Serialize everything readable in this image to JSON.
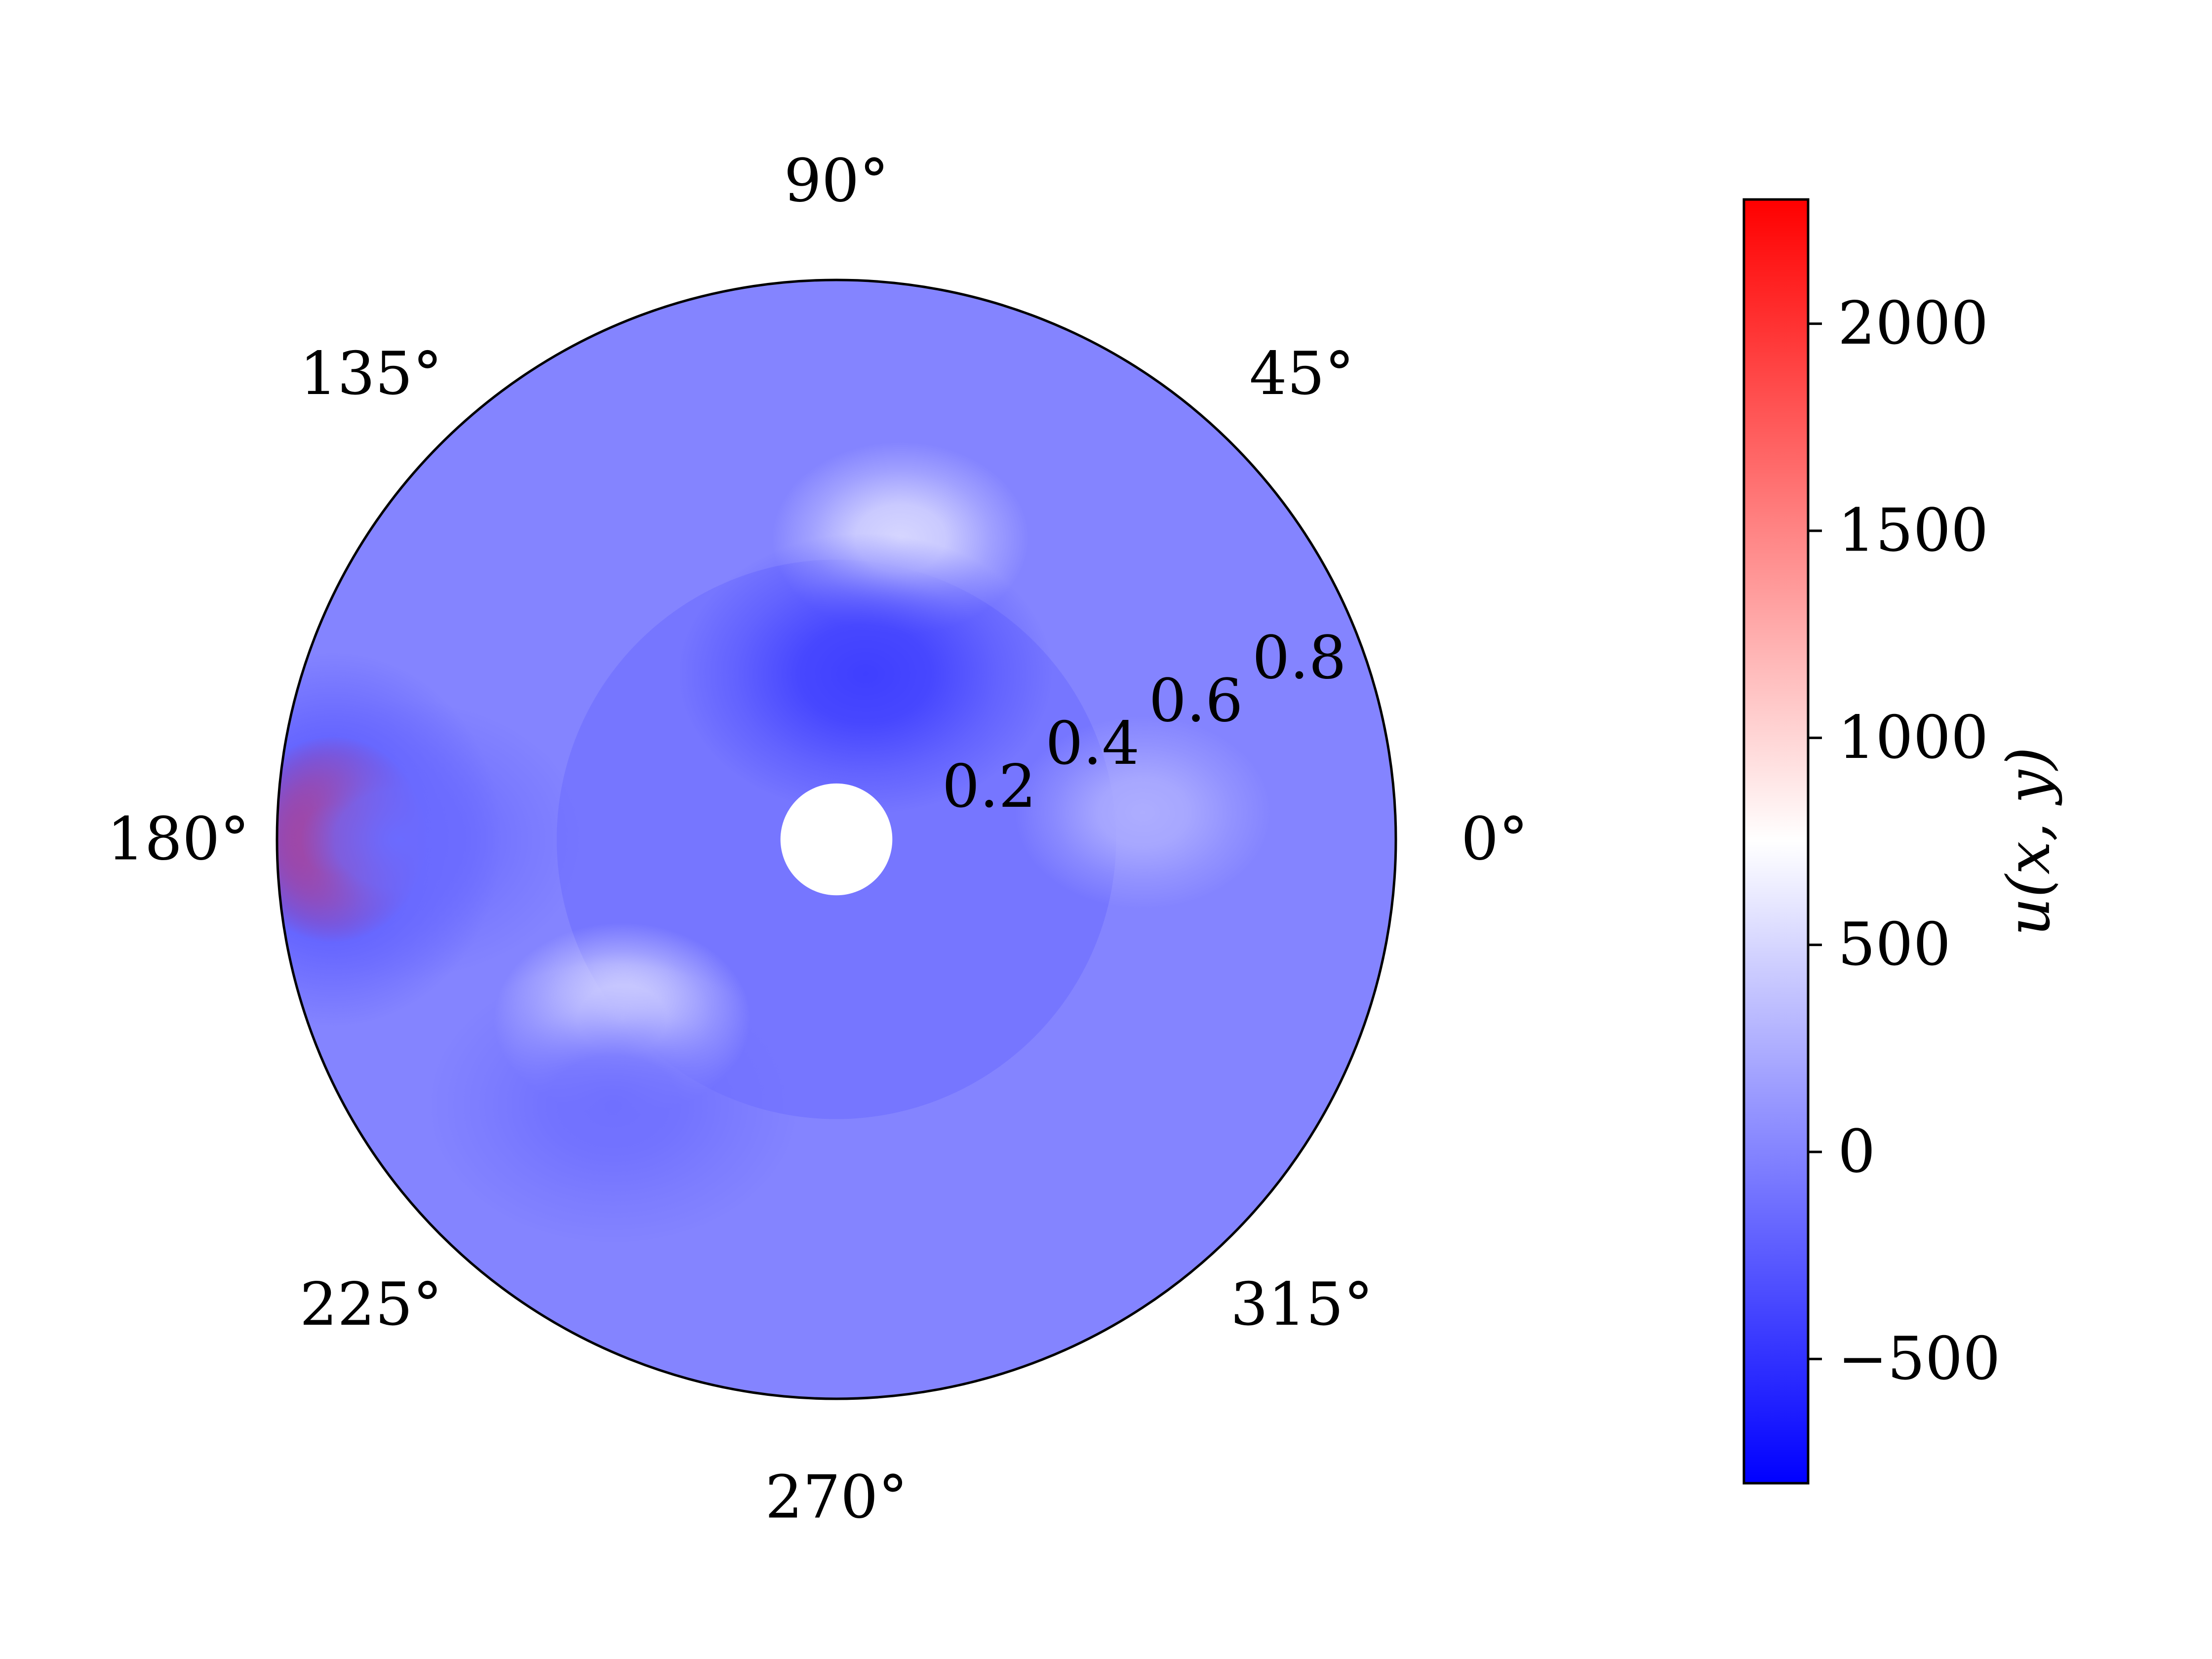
{
  "chart_data": {
    "type": "heatmap",
    "projection": "polar",
    "title": "",
    "angular_ticks": [
      "0°",
      "45°",
      "90°",
      "135°",
      "180°",
      "225°",
      "270°",
      "315°"
    ],
    "angular_tick_degrees": [
      0,
      45,
      90,
      135,
      180,
      225,
      270,
      315
    ],
    "radial_ticks": [
      "0.2",
      "0.4",
      "0.6",
      "0.8"
    ],
    "radial_tick_values": [
      0.2,
      0.4,
      0.6,
      0.8
    ],
    "rlim": [
      0.0,
      1.0
    ],
    "inner_hole_radius": 0.1,
    "grid": false,
    "colormap": "bwr",
    "colorbar": {
      "label": "u(x, y)",
      "vmin": -800,
      "vmax": 2300,
      "ticks": [
        -500,
        0,
        500,
        1000,
        1500,
        2000
      ],
      "tick_labels": [
        "−500",
        "0",
        "500",
        "1000",
        "1500",
        "2000"
      ],
      "placement": "right"
    },
    "field": {
      "background_outer": 0,
      "background_inner": -80,
      "inner_region_radius": 0.5,
      "features": [
        {
          "type": "peak",
          "theta_deg": 180,
          "r": 0.9,
          "value": 2250
        },
        {
          "type": "peak",
          "theta_deg": 220,
          "r": 0.5,
          "value": 620
        },
        {
          "type": "peak",
          "theta_deg": 78,
          "r": 0.55,
          "value": 500
        },
        {
          "type": "peak",
          "theta_deg": 5,
          "r": 0.55,
          "value": 250
        },
        {
          "type": "trough",
          "theta_deg": 80,
          "r": 0.3,
          "value": -420
        },
        {
          "type": "trough",
          "theta_deg": 180,
          "r": 0.78,
          "value": -150
        },
        {
          "type": "trough",
          "theta_deg": 230,
          "r": 0.62,
          "value": -120
        }
      ]
    }
  }
}
